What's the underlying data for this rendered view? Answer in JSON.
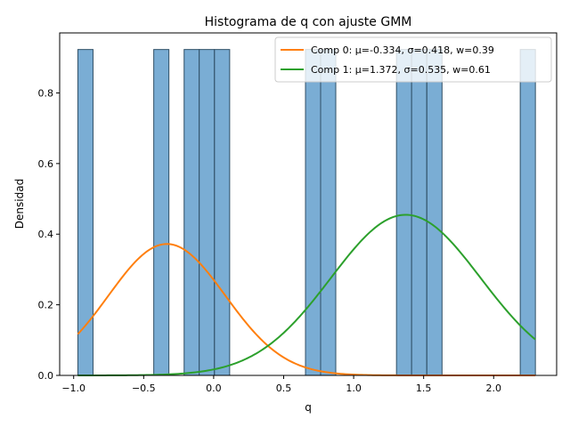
{
  "chart_data": {
    "type": "bar",
    "title": "Histograma de q con ajuste GMM",
    "xlabel": "q",
    "ylabel": "Densidad",
    "xlim": [
      -1.1,
      2.45
    ],
    "ylim": [
      0,
      0.97
    ],
    "xticks": [
      -1.0,
      -0.5,
      0.0,
      0.5,
      1.0,
      1.5,
      2.0
    ],
    "xtick_labels": [
      "−1.0",
      "−0.5",
      "0.0",
      "0.5",
      "1.0",
      "1.5",
      "2.0"
    ],
    "yticks": [
      0.0,
      0.2,
      0.4,
      0.6,
      0.8
    ],
    "ytick_labels": [
      "0.0",
      "0.2",
      "0.4",
      "0.6",
      "0.8"
    ],
    "grid": false,
    "legend_position": "top-right",
    "histogram": {
      "bar_color": "#7aadd4",
      "edge_color": "#2f4f66",
      "bin_width": 0.1083,
      "bin_starts": [
        -0.97,
        -0.428,
        -0.211,
        -0.103,
        0.006,
        0.656,
        0.764,
        1.306,
        1.414,
        1.523,
        2.19
      ],
      "densities": [
        0.923,
        0.923,
        0.923,
        0.923,
        0.923,
        0.923,
        0.923,
        0.923,
        0.923,
        0.923,
        0.923
      ]
    },
    "series": [
      {
        "name": "Comp 0: μ=-0.334, σ=0.418, w=0.39",
        "color": "#ff7f0e",
        "mu": -0.334,
        "sigma": 0.418,
        "weight": 0.39
      },
      {
        "name": "Comp 1: μ=1.372, σ=0.535, w=0.61",
        "color": "#2ca02c",
        "mu": 1.372,
        "sigma": 0.535,
        "weight": 0.61
      }
    ],
    "curve_range": [
      -0.97,
      2.298
    ]
  }
}
